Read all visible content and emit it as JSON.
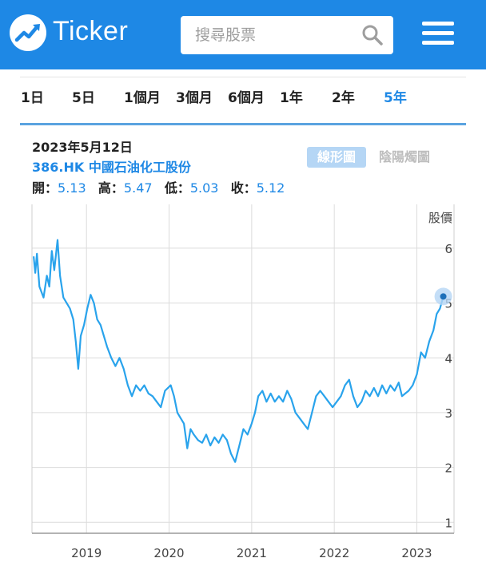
{
  "header": {
    "logo_icon": "trend-up-icon",
    "app_name": "Ticker",
    "search_placeholder": "搜尋股票",
    "search_icon": "search-icon",
    "menu_icon": "hamburger-menu-icon",
    "bg_color": "#1e88e5"
  },
  "ranges": [
    {
      "label": "1日",
      "active": false
    },
    {
      "label": "5日",
      "active": false
    },
    {
      "label": "1個月",
      "active": false
    },
    {
      "label": "3個月",
      "active": false
    },
    {
      "label": "6個月",
      "active": false
    },
    {
      "label": "1年",
      "active": false
    },
    {
      "label": "2年",
      "active": false
    },
    {
      "label": "5年",
      "active": true
    }
  ],
  "quote": {
    "date": "2023年5月12日",
    "symbol_name": "386.HK 中國石油化工股份",
    "open_label": "開：",
    "open": "5.13",
    "high_label": "高：",
    "high": "5.47",
    "low_label": "低：",
    "low": "5.03",
    "close_label": "收：",
    "close": "5.12"
  },
  "chart_toggle": {
    "line_label": "線形圖",
    "candle_label": "陰陽燭圖"
  },
  "chart_data": {
    "type": "line",
    "ylabel": "股價",
    "ylim": [
      0.8,
      6.8
    ],
    "y_ticks": [
      1,
      2,
      3,
      4,
      5,
      6
    ],
    "x_ticks": [
      "2019",
      "2020",
      "2021",
      "2022",
      "2023"
    ],
    "series": [
      {
        "values": [
          {
            "x": 2018.36,
            "y": 5.85
          },
          {
            "x": 2018.38,
            "y": 5.55
          },
          {
            "x": 2018.4,
            "y": 5.9
          },
          {
            "x": 2018.43,
            "y": 5.3
          },
          {
            "x": 2018.48,
            "y": 5.1
          },
          {
            "x": 2018.52,
            "y": 5.5
          },
          {
            "x": 2018.55,
            "y": 5.3
          },
          {
            "x": 2018.58,
            "y": 5.95
          },
          {
            "x": 2018.61,
            "y": 5.6
          },
          {
            "x": 2018.65,
            "y": 6.15
          },
          {
            "x": 2018.68,
            "y": 5.5
          },
          {
            "x": 2018.72,
            "y": 5.1
          },
          {
            "x": 2018.76,
            "y": 5.0
          },
          {
            "x": 2018.8,
            "y": 4.9
          },
          {
            "x": 2018.84,
            "y": 4.7
          },
          {
            "x": 2018.87,
            "y": 4.3
          },
          {
            "x": 2018.9,
            "y": 3.8
          },
          {
            "x": 2018.93,
            "y": 4.4
          },
          {
            "x": 2018.97,
            "y": 4.6
          },
          {
            "x": 2019.01,
            "y": 4.9
          },
          {
            "x": 2019.05,
            "y": 5.15
          },
          {
            "x": 2019.09,
            "y": 5.0
          },
          {
            "x": 2019.13,
            "y": 4.7
          },
          {
            "x": 2019.17,
            "y": 4.6
          },
          {
            "x": 2019.21,
            "y": 4.4
          },
          {
            "x": 2019.25,
            "y": 4.2
          },
          {
            "x": 2019.3,
            "y": 4.0
          },
          {
            "x": 2019.35,
            "y": 3.85
          },
          {
            "x": 2019.4,
            "y": 4.0
          },
          {
            "x": 2019.45,
            "y": 3.8
          },
          {
            "x": 2019.5,
            "y": 3.5
          },
          {
            "x": 2019.55,
            "y": 3.3
          },
          {
            "x": 2019.6,
            "y": 3.5
          },
          {
            "x": 2019.65,
            "y": 3.4
          },
          {
            "x": 2019.7,
            "y": 3.5
          },
          {
            "x": 2019.75,
            "y": 3.35
          },
          {
            "x": 2019.8,
            "y": 3.3
          },
          {
            "x": 2019.85,
            "y": 3.2
          },
          {
            "x": 2019.9,
            "y": 3.1
          },
          {
            "x": 2019.95,
            "y": 3.4
          },
          {
            "x": 2020.02,
            "y": 3.5
          },
          {
            "x": 2020.06,
            "y": 3.3
          },
          {
            "x": 2020.1,
            "y": 3.0
          },
          {
            "x": 2020.14,
            "y": 2.9
          },
          {
            "x": 2020.18,
            "y": 2.8
          },
          {
            "x": 2020.22,
            "y": 2.35
          },
          {
            "x": 2020.26,
            "y": 2.7
          },
          {
            "x": 2020.3,
            "y": 2.6
          },
          {
            "x": 2020.35,
            "y": 2.5
          },
          {
            "x": 2020.4,
            "y": 2.45
          },
          {
            "x": 2020.45,
            "y": 2.6
          },
          {
            "x": 2020.5,
            "y": 2.4
          },
          {
            "x": 2020.55,
            "y": 2.55
          },
          {
            "x": 2020.6,
            "y": 2.45
          },
          {
            "x": 2020.65,
            "y": 2.6
          },
          {
            "x": 2020.7,
            "y": 2.5
          },
          {
            "x": 2020.75,
            "y": 2.25
          },
          {
            "x": 2020.8,
            "y": 2.1
          },
          {
            "x": 2020.85,
            "y": 2.4
          },
          {
            "x": 2020.9,
            "y": 2.7
          },
          {
            "x": 2020.95,
            "y": 2.6
          },
          {
            "x": 2021.0,
            "y": 2.8
          },
          {
            "x": 2021.04,
            "y": 3.0
          },
          {
            "x": 2021.08,
            "y": 3.3
          },
          {
            "x": 2021.13,
            "y": 3.4
          },
          {
            "x": 2021.18,
            "y": 3.2
          },
          {
            "x": 2021.23,
            "y": 3.35
          },
          {
            "x": 2021.28,
            "y": 3.2
          },
          {
            "x": 2021.33,
            "y": 3.3
          },
          {
            "x": 2021.38,
            "y": 3.2
          },
          {
            "x": 2021.43,
            "y": 3.4
          },
          {
            "x": 2021.48,
            "y": 3.25
          },
          {
            "x": 2021.53,
            "y": 3.0
          },
          {
            "x": 2021.58,
            "y": 2.9
          },
          {
            "x": 2021.63,
            "y": 2.8
          },
          {
            "x": 2021.68,
            "y": 2.7
          },
          {
            "x": 2021.73,
            "y": 3.0
          },
          {
            "x": 2021.78,
            "y": 3.3
          },
          {
            "x": 2021.83,
            "y": 3.4
          },
          {
            "x": 2021.88,
            "y": 3.3
          },
          {
            "x": 2021.93,
            "y": 3.2
          },
          {
            "x": 2021.98,
            "y": 3.1
          },
          {
            "x": 2022.03,
            "y": 3.2
          },
          {
            "x": 2022.08,
            "y": 3.3
          },
          {
            "x": 2022.13,
            "y": 3.5
          },
          {
            "x": 2022.18,
            "y": 3.6
          },
          {
            "x": 2022.23,
            "y": 3.3
          },
          {
            "x": 2022.28,
            "y": 3.1
          },
          {
            "x": 2022.33,
            "y": 3.2
          },
          {
            "x": 2022.38,
            "y": 3.4
          },
          {
            "x": 2022.43,
            "y": 3.3
          },
          {
            "x": 2022.48,
            "y": 3.45
          },
          {
            "x": 2022.53,
            "y": 3.3
          },
          {
            "x": 2022.58,
            "y": 3.5
          },
          {
            "x": 2022.63,
            "y": 3.35
          },
          {
            "x": 2022.68,
            "y": 3.5
          },
          {
            "x": 2022.73,
            "y": 3.4
          },
          {
            "x": 2022.78,
            "y": 3.55
          },
          {
            "x": 2022.82,
            "y": 3.3
          },
          {
            "x": 2022.86,
            "y": 3.35
          },
          {
            "x": 2022.9,
            "y": 3.4
          },
          {
            "x": 2022.95,
            "y": 3.5
          },
          {
            "x": 2023.0,
            "y": 3.7
          },
          {
            "x": 2023.05,
            "y": 4.1
          },
          {
            "x": 2023.1,
            "y": 4.0
          },
          {
            "x": 2023.15,
            "y": 4.3
          },
          {
            "x": 2023.2,
            "y": 4.5
          },
          {
            "x": 2023.24,
            "y": 4.8
          },
          {
            "x": 2023.28,
            "y": 4.9
          },
          {
            "x": 2023.32,
            "y": 5.12
          }
        ]
      }
    ],
    "line_color": "#29a3ec",
    "grid": true
  }
}
